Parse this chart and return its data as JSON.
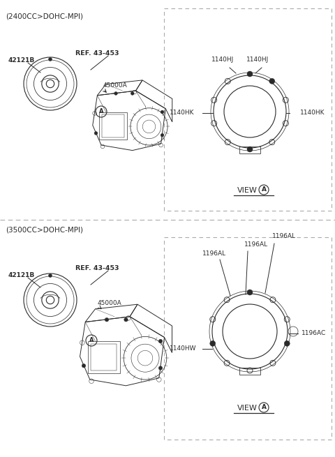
{
  "bg_color": "#ffffff",
  "line_color": "#2a2a2a",
  "dash_color": "#aaaaaa",
  "title1": "(2400CC>DOHC-MPI)",
  "title2": "(3500CC>DOHC-MPI)",
  "label_42121B": "42121B",
  "label_ref": "REF. 43-453",
  "label_45000A": "45000A",
  "label_1140HJ_a": "1140HJ",
  "label_1140HJ_b": "1140HJ",
  "label_1140HK_l": "1140HK",
  "label_1140HK_r": "1140HK",
  "label_1196AL_a": "1196AL",
  "label_1196AL_b": "1196AL",
  "label_1196AL_c": "1196AL",
  "label_1196AC": "1196AC",
  "label_1140HW": "1140HW",
  "fs_title": 7.5,
  "fs_label": 6.5,
  "fs_ref": 6.8
}
